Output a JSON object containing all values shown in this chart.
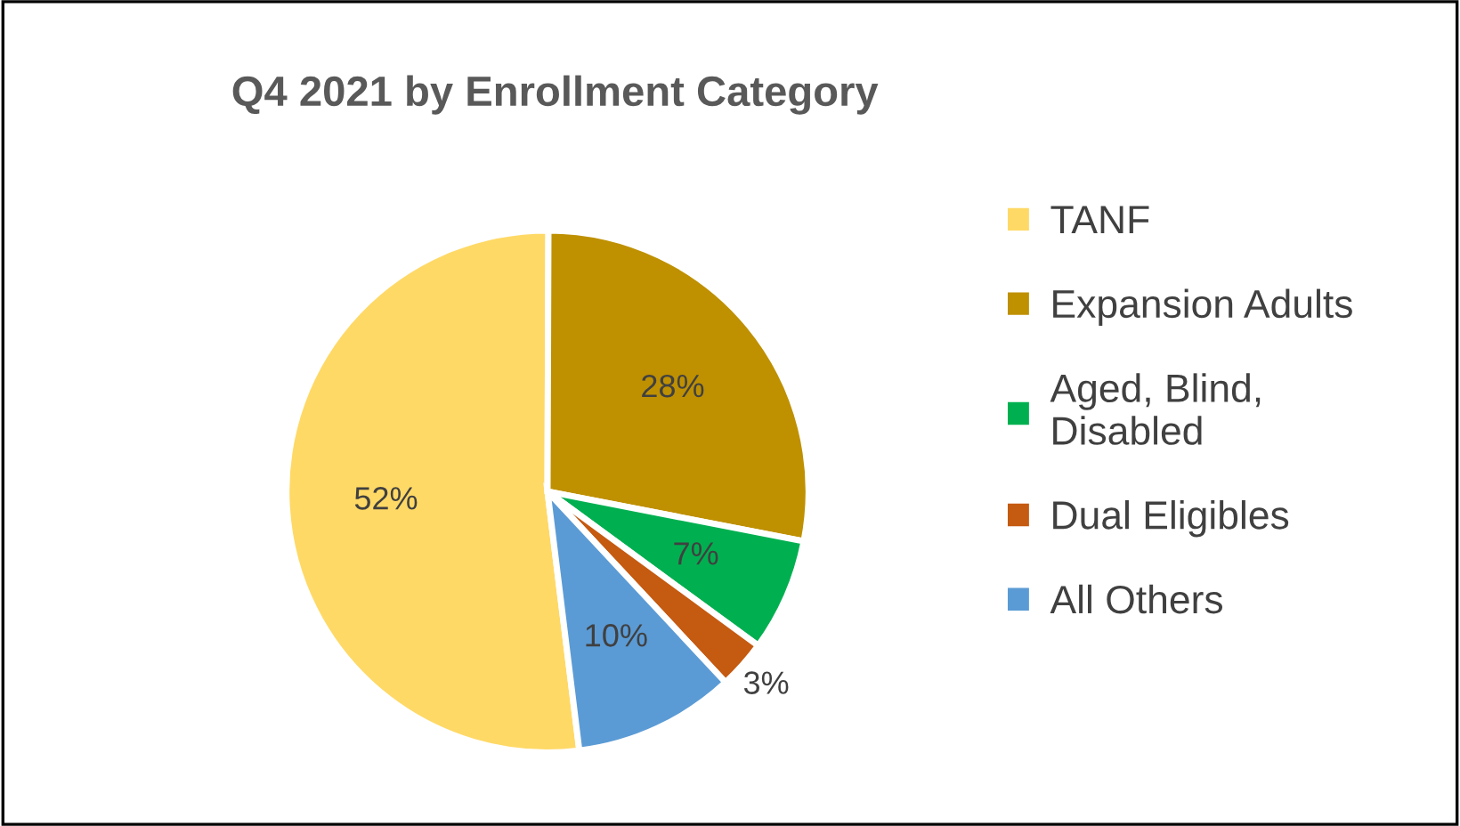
{
  "chart_data": {
    "type": "pie",
    "title": "Q4 2021 by Enrollment Category",
    "categories": [
      "TANF",
      "Expansion Adults",
      "Aged, Blind,\nDisabled",
      "Dual Eligibles",
      "All Others"
    ],
    "values": [
      52,
      28,
      7,
      3,
      10
    ],
    "value_labels": [
      "52%",
      "28%",
      "7%",
      "3%",
      "10%"
    ],
    "colors": [
      "#ffd966",
      "#bf9000",
      "#00b050",
      "#c55a11",
      "#5b9bd5"
    ],
    "legend": "right"
  }
}
